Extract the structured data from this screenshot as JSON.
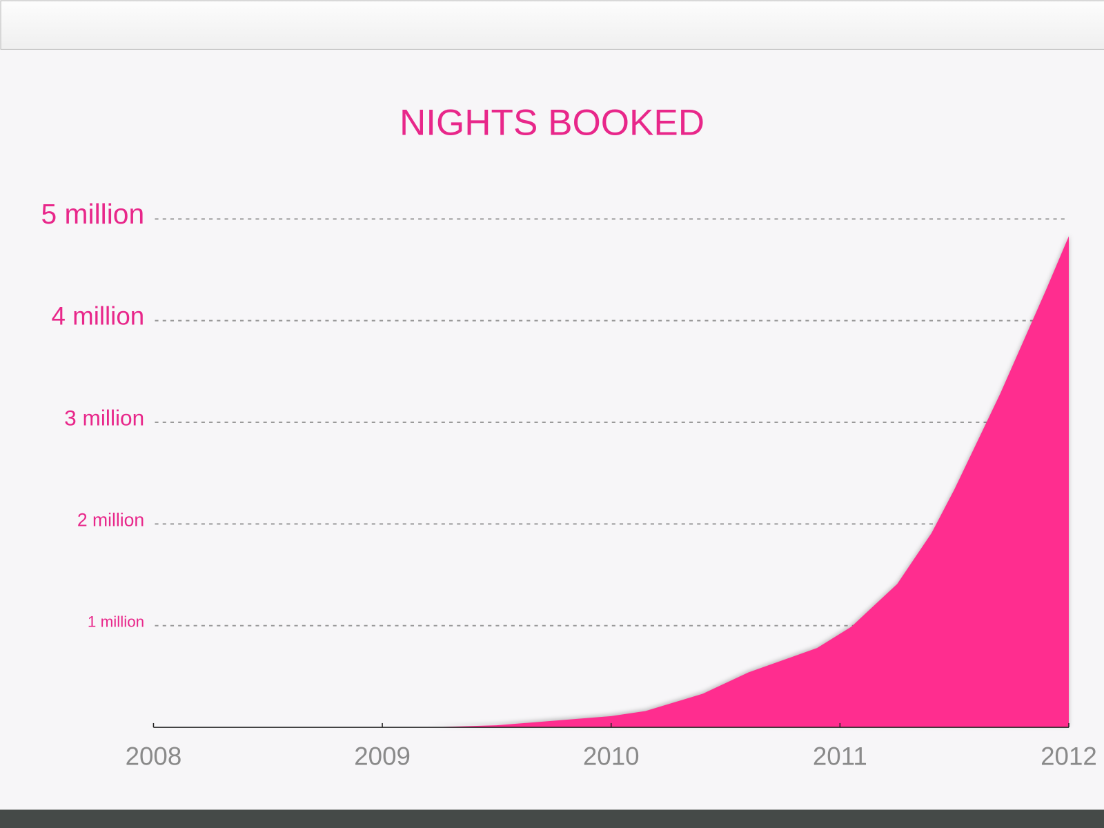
{
  "chart_data": {
    "type": "area",
    "title": "NIGHTS BOOKED",
    "x": [
      2008,
      2009.2,
      2009.5,
      2010,
      2010.15,
      2010.4,
      2010.6,
      2010.9,
      2011.05,
      2011.25,
      2011.4,
      2011.5,
      2011.7,
      2011.9,
      2012
    ],
    "values": [
      0,
      0,
      0.02,
      0.11,
      0.16,
      0.33,
      0.54,
      0.78,
      0.99,
      1.41,
      1.91,
      2.34,
      3.28,
      4.3,
      4.83
    ],
    "color": "#ff2d8f",
    "xlim": [
      2008,
      2012
    ],
    "xticks": [
      2008,
      2009,
      2010,
      2011,
      2012
    ],
    "ylim": [
      0,
      5
    ],
    "yticks": [
      {
        "value": 1,
        "label": "1 million"
      },
      {
        "value": 2,
        "label": "2 million"
      },
      {
        "value": 3,
        "label": "3 million"
      },
      {
        "value": 4,
        "label": "4 million"
      },
      {
        "value": 5,
        "label": "5 million"
      }
    ],
    "grid": true
  }
}
